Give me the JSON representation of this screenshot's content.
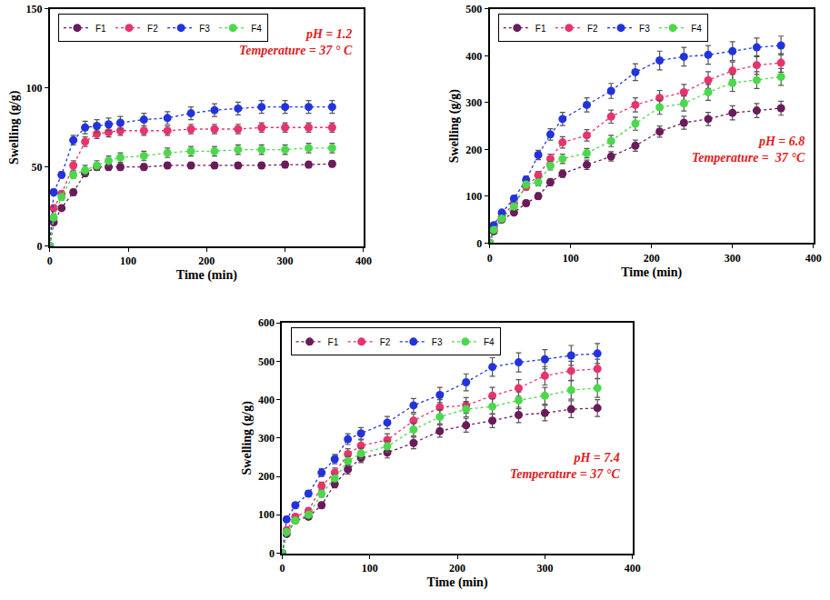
{
  "chart_data": [
    {
      "type": "line",
      "x_label": "Time (min)",
      "y_label": "Swelling (g/g)",
      "annotations": [
        "pH = 1.2",
        "Temperature = 37 ° C"
      ],
      "x": [
        0,
        5,
        15,
        30,
        45,
        60,
        75,
        90,
        120,
        150,
        180,
        210,
        240,
        270,
        300,
        330,
        360
      ],
      "xlim": [
        0,
        400
      ],
      "xticks": [
        0,
        100,
        200,
        300,
        400
      ],
      "ylim": [
        0,
        150
      ],
      "yticks": [
        0,
        50,
        100,
        150
      ],
      "grid": false,
      "legend": "upper left",
      "marker": "circle",
      "line_style": "dot",
      "series": [
        {
          "name": "F1",
          "color": "#6a1b5a",
          "values": [
            0,
            15,
            24,
            34,
            46,
            50,
            50,
            50,
            50,
            51,
            51,
            51,
            51,
            51,
            51.5,
            51.5,
            52
          ],
          "errors": [
            0,
            1,
            1.5,
            2,
            2,
            2,
            2,
            2,
            2,
            2,
            2,
            2,
            2,
            2,
            2,
            2,
            2
          ]
        },
        {
          "name": "F2",
          "color": "#e8336b",
          "values": [
            0,
            24,
            33,
            51,
            66,
            71,
            72,
            73,
            73,
            73,
            74,
            74,
            74,
            75,
            75,
            75,
            75
          ],
          "errors": [
            0,
            2,
            2,
            3,
            3,
            3,
            3,
            3,
            3,
            3,
            3,
            3,
            3,
            3,
            3,
            3,
            3
          ]
        },
        {
          "name": "F3",
          "color": "#2233dd",
          "values": [
            0,
            34,
            45,
            67,
            75,
            76,
            77,
            78,
            80,
            81,
            84,
            86,
            87,
            88,
            88,
            88,
            88
          ],
          "errors": [
            0,
            2,
            2,
            3,
            4,
            4,
            4,
            4,
            4,
            4,
            4,
            4,
            4,
            4,
            4,
            4,
            4
          ]
        },
        {
          "name": "F4",
          "color": "#4cd84c",
          "values": [
            0,
            18,
            31,
            45,
            48,
            51,
            54,
            56,
            57,
            59,
            60,
            60,
            61,
            61,
            61,
            62,
            62
          ],
          "errors": [
            0,
            2,
            2,
            2,
            3,
            3,
            3,
            3,
            3,
            3,
            3,
            3,
            3,
            3,
            3,
            3,
            3
          ]
        }
      ]
    },
    {
      "type": "line",
      "x_label": "Time (min)",
      "y_label": "Swelling (g/g)",
      "annotations": [
        "pH = 6.8",
        "Temperature =  37 °C"
      ],
      "x": [
        0,
        5,
        15,
        30,
        45,
        60,
        75,
        90,
        120,
        150,
        180,
        210,
        240,
        270,
        300,
        330,
        360
      ],
      "xlim": [
        0,
        400
      ],
      "xticks": [
        0,
        100,
        200,
        300,
        400
      ],
      "ylim": [
        0,
        500
      ],
      "yticks": [
        0,
        100,
        200,
        300,
        400,
        500
      ],
      "grid": false,
      "legend": "upper left",
      "marker": "circle",
      "line_style": "dot",
      "series": [
        {
          "name": "F1",
          "color": "#6a1b5a",
          "values": [
            0,
            25,
            50,
            65,
            85,
            100,
            130,
            148,
            167,
            185,
            208,
            238,
            257,
            265,
            278,
            283,
            288
          ],
          "errors": [
            0,
            3,
            4,
            5,
            6,
            7,
            8,
            8,
            10,
            10,
            12,
            12,
            14,
            14,
            15,
            15,
            15
          ]
        },
        {
          "name": "F2",
          "color": "#e8336b",
          "values": [
            0,
            30,
            55,
            85,
            120,
            145,
            180,
            215,
            230,
            270,
            295,
            310,
            322,
            348,
            368,
            380,
            385
          ],
          "errors": [
            0,
            3,
            4,
            5,
            7,
            8,
            10,
            12,
            12,
            14,
            15,
            16,
            17,
            18,
            19,
            20,
            20
          ]
        },
        {
          "name": "F3",
          "color": "#2233dd",
          "values": [
            0,
            38,
            65,
            95,
            135,
            188,
            232,
            265,
            295,
            325,
            365,
            390,
            398,
            402,
            410,
            418,
            422
          ],
          "errors": [
            0,
            4,
            5,
            6,
            8,
            10,
            12,
            14,
            15,
            16,
            18,
            20,
            20,
            20,
            20,
            20,
            20
          ]
        },
        {
          "name": "F4",
          "color": "#4cd84c",
          "values": [
            0,
            28,
            52,
            78,
            125,
            130,
            165,
            180,
            192,
            218,
            255,
            290,
            298,
            322,
            342,
            348,
            355
          ],
          "errors": [
            0,
            3,
            4,
            5,
            6,
            8,
            9,
            10,
            10,
            12,
            14,
            15,
            16,
            17,
            18,
            18,
            18
          ]
        }
      ]
    },
    {
      "type": "line",
      "x_label": "Time (min)",
      "y_label": "Swelling (g/g)",
      "annotations": [
        "pH = 7.4",
        "Temperature = 37 °C"
      ],
      "x": [
        0,
        5,
        15,
        30,
        45,
        60,
        75,
        90,
        120,
        150,
        180,
        210,
        240,
        270,
        300,
        330,
        360
      ],
      "xlim": [
        0,
        400
      ],
      "xticks": [
        0,
        100,
        200,
        300,
        400
      ],
      "ylim": [
        0,
        600
      ],
      "yticks": [
        0,
        100,
        200,
        300,
        400,
        500,
        600
      ],
      "grid": false,
      "legend": "upper left",
      "marker": "circle",
      "line_style": "dot",
      "series": [
        {
          "name": "F1",
          "color": "#6a1b5a",
          "values": [
            0,
            50,
            85,
            95,
            125,
            180,
            218,
            248,
            262,
            287,
            318,
            333,
            345,
            360,
            365,
            375,
            378
          ],
          "errors": [
            0,
            5,
            6,
            7,
            8,
            10,
            12,
            12,
            14,
            15,
            16,
            18,
            18,
            20,
            20,
            22,
            22
          ]
        },
        {
          "name": "F2",
          "color": "#e8336b",
          "values": [
            0,
            60,
            95,
            110,
            175,
            210,
            258,
            280,
            295,
            345,
            380,
            385,
            410,
            430,
            462,
            475,
            480
          ],
          "errors": [
            0,
            5,
            6,
            8,
            10,
            12,
            14,
            15,
            16,
            18,
            20,
            20,
            22,
            22,
            24,
            25,
            25
          ]
        },
        {
          "name": "F3",
          "color": "#2233dd",
          "values": [
            0,
            88,
            125,
            155,
            210,
            245,
            297,
            312,
            340,
            385,
            412,
            445,
            485,
            497,
            505,
            515,
            520
          ],
          "errors": [
            0,
            6,
            7,
            8,
            10,
            12,
            14,
            15,
            16,
            18,
            20,
            22,
            24,
            25,
            25,
            26,
            26
          ]
        },
        {
          "name": "F4",
          "color": "#4cd84c",
          "values": [
            0,
            55,
            85,
            100,
            155,
            195,
            240,
            260,
            278,
            322,
            355,
            375,
            382,
            398,
            410,
            425,
            430
          ],
          "errors": [
            0,
            5,
            6,
            7,
            9,
            10,
            12,
            14,
            15,
            17,
            18,
            20,
            20,
            22,
            22,
            24,
            24
          ]
        }
      ]
    }
  ]
}
